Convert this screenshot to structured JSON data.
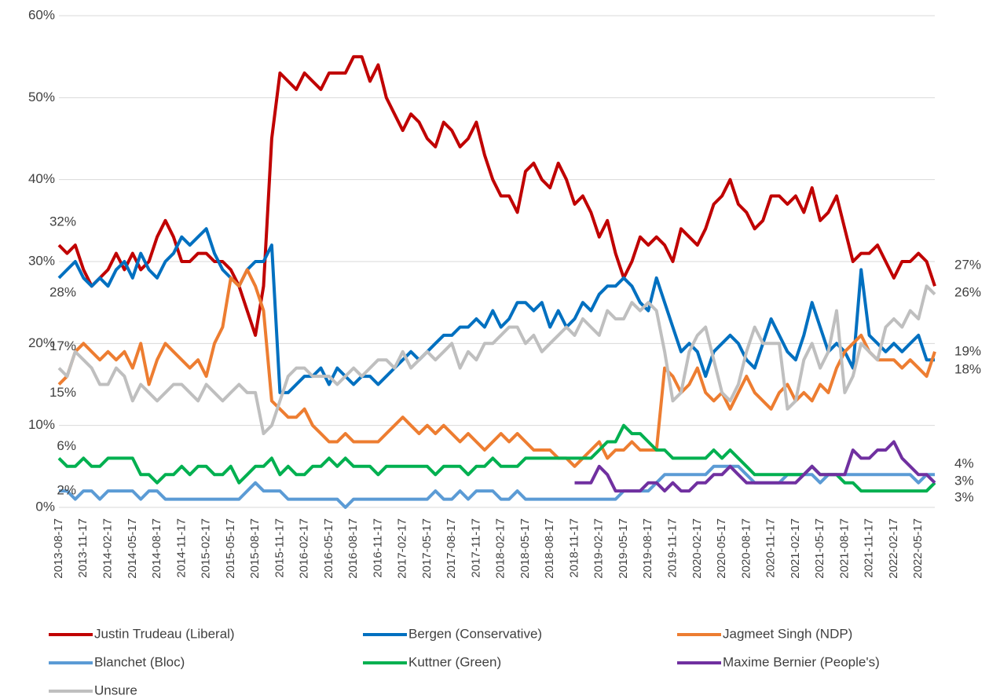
{
  "chart_data": {
    "type": "line",
    "categories": [
      "2013-08-17",
      null,
      null,
      "2013-11-17",
      null,
      null,
      "2014-02-17",
      null,
      null,
      "2014-05-17",
      null,
      null,
      "2014-08-17",
      null,
      null,
      "2014-11-17",
      null,
      null,
      "2015-02-17",
      null,
      null,
      "2015-05-17",
      null,
      null,
      "2015-08-17",
      null,
      null,
      "2015-11-17",
      null,
      null,
      "2016-02-17",
      null,
      null,
      "2016-05-17",
      null,
      null,
      "2016-08-17",
      null,
      null,
      "2016-11-17",
      null,
      null,
      "2017-02-17",
      null,
      null,
      "2017-05-17",
      null,
      null,
      "2017-08-17",
      null,
      null,
      "2017-11-17",
      null,
      null,
      "2018-02-17",
      null,
      null,
      "2018-05-17",
      null,
      null,
      "2018-08-17",
      null,
      null,
      "2018-11-17",
      null,
      null,
      "2019-02-17",
      null,
      null,
      "2019-05-17",
      null,
      null,
      "2019-08-17",
      null,
      null,
      "2019-11-17",
      null,
      null,
      "2020-02-17",
      null,
      null,
      "2020-05-17",
      null,
      null,
      "2020-08-17",
      null,
      null,
      "2020-11-17",
      null,
      null,
      "2021-02-17",
      null,
      null,
      "2021-05-17",
      null,
      null,
      "2021-08-17",
      null,
      null,
      "2021-11-17",
      null,
      null,
      "2022-02-17",
      null,
      null,
      "2022-05-17",
      null,
      null
    ],
    "ylim": [
      0,
      60
    ],
    "yticks": [
      {
        "value": 0,
        "label": "0%"
      },
      {
        "value": 10,
        "label": "10%"
      },
      {
        "value": 20,
        "label": "20%"
      },
      {
        "value": 30,
        "label": "30%"
      },
      {
        "value": 40,
        "label": "40%"
      },
      {
        "value": 50,
        "label": "50%"
      },
      {
        "value": 60,
        "label": "60%"
      }
    ],
    "grid": true,
    "series": [
      {
        "name": "Justin Trudeau (Liberal)",
        "color": "#c00000",
        "first_label": "32%",
        "last_label": "27%",
        "values": [
          32,
          31,
          32,
          29,
          27,
          28,
          29,
          31,
          29,
          31,
          29,
          30,
          33,
          35,
          33,
          30,
          30,
          31,
          31,
          30,
          30,
          29,
          27,
          24,
          21,
          27,
          45,
          53,
          52,
          51,
          53,
          52,
          51,
          53,
          53,
          53,
          55,
          55,
          52,
          54,
          50,
          48,
          46,
          48,
          47,
          45,
          44,
          47,
          46,
          44,
          45,
          47,
          43,
          40,
          38,
          38,
          36,
          41,
          42,
          40,
          39,
          42,
          40,
          37,
          38,
          36,
          33,
          35,
          31,
          28,
          30,
          33,
          32,
          33,
          32,
          30,
          34,
          33,
          32,
          34,
          37,
          38,
          40,
          37,
          36,
          34,
          35,
          38,
          38,
          37,
          38,
          36,
          39,
          35,
          36,
          38,
          34,
          30,
          31,
          31,
          32,
          30,
          28,
          30,
          30,
          31,
          30,
          27
        ]
      },
      {
        "name": "Bergen (Conservative)",
        "color": "#0070c0",
        "first_label": "28%",
        "last_label": "18%",
        "values": [
          28,
          29,
          30,
          28,
          27,
          28,
          27,
          29,
          30,
          28,
          31,
          29,
          28,
          30,
          31,
          33,
          32,
          33,
          34,
          31,
          29,
          28,
          27,
          29,
          30,
          30,
          32,
          14,
          14,
          15,
          16,
          16,
          17,
          15,
          17,
          16,
          15,
          16,
          16,
          15,
          16,
          17,
          18,
          19,
          18,
          19,
          20,
          21,
          21,
          22,
          22,
          23,
          22,
          24,
          22,
          23,
          25,
          25,
          24,
          25,
          22,
          24,
          22,
          23,
          25,
          24,
          26,
          27,
          27,
          28,
          27,
          25,
          24,
          28,
          25,
          22,
          19,
          20,
          19,
          16,
          19,
          20,
          21,
          20,
          18,
          17,
          20,
          23,
          21,
          19,
          18,
          21,
          25,
          22,
          19,
          20,
          19,
          17,
          29,
          21,
          20,
          19,
          20,
          19,
          20,
          21,
          18,
          18
        ]
      },
      {
        "name": "Jagmeet Singh (NDP)",
        "color": "#ed7d31",
        "first_label": "15%",
        "last_label": "19%",
        "values": [
          15,
          16,
          19,
          20,
          19,
          18,
          19,
          18,
          19,
          17,
          20,
          15,
          18,
          20,
          19,
          18,
          17,
          18,
          16,
          20,
          22,
          28,
          27,
          29,
          27,
          24,
          13,
          12,
          11,
          11,
          12,
          10,
          9,
          8,
          8,
          9,
          8,
          8,
          8,
          8,
          9,
          10,
          11,
          10,
          9,
          10,
          9,
          10,
          9,
          8,
          9,
          8,
          7,
          8,
          9,
          8,
          9,
          8,
          7,
          7,
          7,
          6,
          6,
          5,
          6,
          7,
          8,
          6,
          7,
          7,
          8,
          7,
          7,
          7,
          17,
          16,
          14,
          15,
          17,
          14,
          13,
          14,
          12,
          14,
          16,
          14,
          13,
          12,
          14,
          15,
          13,
          14,
          13,
          15,
          14,
          17,
          19,
          20,
          21,
          19,
          18,
          18,
          18,
          17,
          18,
          17,
          16,
          19
        ]
      },
      {
        "name": "Blanchet (Bloc)",
        "color": "#5b9bd5",
        "first_label": "2%",
        "last_label": "4%",
        "values": [
          2,
          2,
          1,
          2,
          2,
          1,
          2,
          2,
          2,
          2,
          1,
          2,
          2,
          1,
          1,
          1,
          1,
          1,
          1,
          1,
          1,
          1,
          1,
          2,
          3,
          2,
          2,
          2,
          1,
          1,
          1,
          1,
          1,
          1,
          1,
          0,
          1,
          1,
          1,
          1,
          1,
          1,
          1,
          1,
          1,
          1,
          2,
          1,
          1,
          2,
          1,
          2,
          2,
          2,
          1,
          1,
          2,
          1,
          1,
          1,
          1,
          1,
          1,
          1,
          1,
          1,
          1,
          1,
          1,
          2,
          2,
          2,
          2,
          3,
          4,
          4,
          4,
          4,
          4,
          4,
          5,
          5,
          5,
          5,
          4,
          3,
          3,
          3,
          3,
          4,
          4,
          4,
          4,
          3,
          4,
          4,
          4,
          4,
          4,
          4,
          4,
          4,
          4,
          4,
          4,
          3,
          4,
          4
        ]
      },
      {
        "name": "Kuttner (Green)",
        "color": "#00b050",
        "first_label": "6%",
        "last_label": "3%",
        "values": [
          6,
          5,
          5,
          6,
          5,
          5,
          6,
          6,
          6,
          6,
          4,
          4,
          3,
          4,
          4,
          5,
          4,
          5,
          5,
          4,
          4,
          5,
          3,
          4,
          5,
          5,
          6,
          4,
          5,
          4,
          4,
          5,
          5,
          6,
          5,
          6,
          5,
          5,
          5,
          4,
          5,
          5,
          5,
          5,
          5,
          5,
          4,
          5,
          5,
          5,
          4,
          5,
          5,
          6,
          5,
          5,
          5,
          6,
          6,
          6,
          6,
          6,
          6,
          6,
          6,
          6,
          7,
          8,
          8,
          10,
          9,
          9,
          8,
          7,
          7,
          6,
          6,
          6,
          6,
          6,
          7,
          6,
          7,
          6,
          5,
          4,
          4,
          4,
          4,
          4,
          4,
          4,
          5,
          4,
          4,
          4,
          3,
          3,
          2,
          2,
          2,
          2,
          2,
          2,
          2,
          2,
          2,
          3
        ]
      },
      {
        "name": "Maxime Bernier (People's)",
        "color": "#7030a0",
        "last_label": "3%",
        "values": [
          null,
          null,
          null,
          null,
          null,
          null,
          null,
          null,
          null,
          null,
          null,
          null,
          null,
          null,
          null,
          null,
          null,
          null,
          null,
          null,
          null,
          null,
          null,
          null,
          null,
          null,
          null,
          null,
          null,
          null,
          null,
          null,
          null,
          null,
          null,
          null,
          null,
          null,
          null,
          null,
          null,
          null,
          null,
          null,
          null,
          null,
          null,
          null,
          null,
          null,
          null,
          null,
          null,
          null,
          null,
          null,
          null,
          null,
          null,
          null,
          null,
          null,
          null,
          3,
          3,
          3,
          5,
          4,
          2,
          2,
          2,
          2,
          3,
          3,
          2,
          3,
          2,
          2,
          3,
          3,
          4,
          4,
          5,
          4,
          3,
          3,
          3,
          3,
          3,
          3,
          3,
          4,
          5,
          4,
          4,
          4,
          4,
          7,
          6,
          6,
          7,
          7,
          8,
          6,
          5,
          4,
          4,
          3
        ]
      },
      {
        "name": "Unsure",
        "color": "#bfbfbf",
        "first_label": "17%",
        "last_label": "26%",
        "values": [
          17,
          16,
          19,
          18,
          17,
          15,
          15,
          17,
          16,
          13,
          15,
          14,
          13,
          14,
          15,
          15,
          14,
          13,
          15,
          14,
          13,
          14,
          15,
          14,
          14,
          9,
          10,
          13,
          16,
          17,
          17,
          16,
          16,
          16,
          15,
          16,
          17,
          16,
          17,
          18,
          18,
          17,
          19,
          17,
          18,
          19,
          18,
          19,
          20,
          17,
          19,
          18,
          20,
          20,
          21,
          22,
          22,
          20,
          21,
          19,
          20,
          21,
          22,
          21,
          23,
          22,
          21,
          24,
          23,
          23,
          25,
          24,
          25,
          24,
          19,
          13,
          14,
          19,
          21,
          22,
          18,
          14,
          13,
          15,
          19,
          22,
          20,
          20,
          20,
          12,
          13,
          18,
          20,
          17,
          19,
          24,
          14,
          16,
          20,
          19,
          18,
          22,
          23,
          22,
          24,
          23,
          27,
          26
        ]
      }
    ]
  }
}
